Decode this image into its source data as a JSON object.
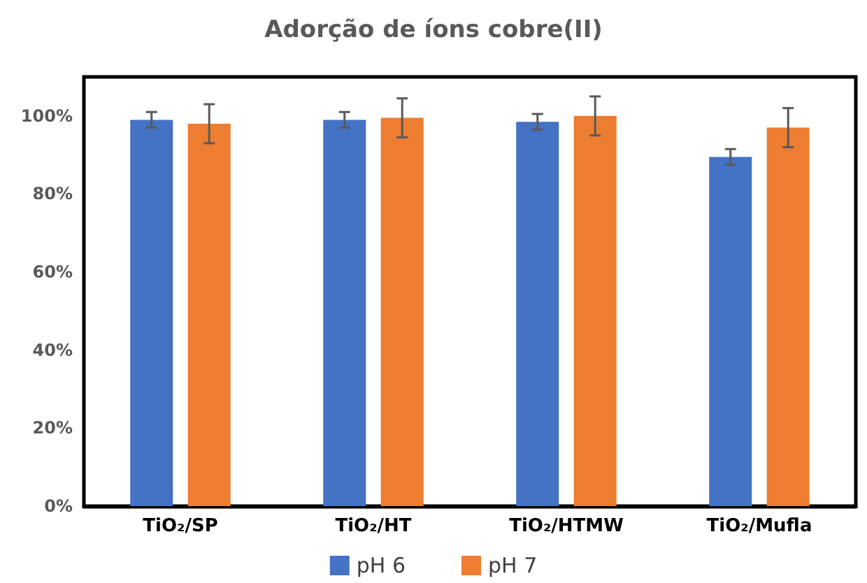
{
  "chart_data": {
    "type": "bar",
    "title": "Adorção de íons cobre(II)",
    "categories": [
      "TiO₂/SP",
      "TiO₂/HT",
      "TiO₂/HTMW",
      "TiO₂/Mufla"
    ],
    "series": [
      {
        "name": "pH 6",
        "color": "#4472c4",
        "values": [
          99,
          99,
          98.5,
          89.5
        ],
        "errors": [
          2,
          2,
          2,
          2
        ]
      },
      {
        "name": "pH 7",
        "color": "#ed7d31",
        "values": [
          98,
          99.5,
          100,
          97
        ],
        "errors": [
          5,
          5,
          5,
          5
        ]
      }
    ],
    "ylim": [
      0,
      110
    ],
    "yticks": [
      {
        "value": 0,
        "label": "0%"
      },
      {
        "value": 20,
        "label": "20%"
      },
      {
        "value": 40,
        "label": "40%"
      },
      {
        "value": 60,
        "label": "60%"
      },
      {
        "value": 80,
        "label": "80%"
      },
      {
        "value": 100,
        "label": "100%"
      }
    ],
    "grid": false,
    "legend": "bottom"
  }
}
